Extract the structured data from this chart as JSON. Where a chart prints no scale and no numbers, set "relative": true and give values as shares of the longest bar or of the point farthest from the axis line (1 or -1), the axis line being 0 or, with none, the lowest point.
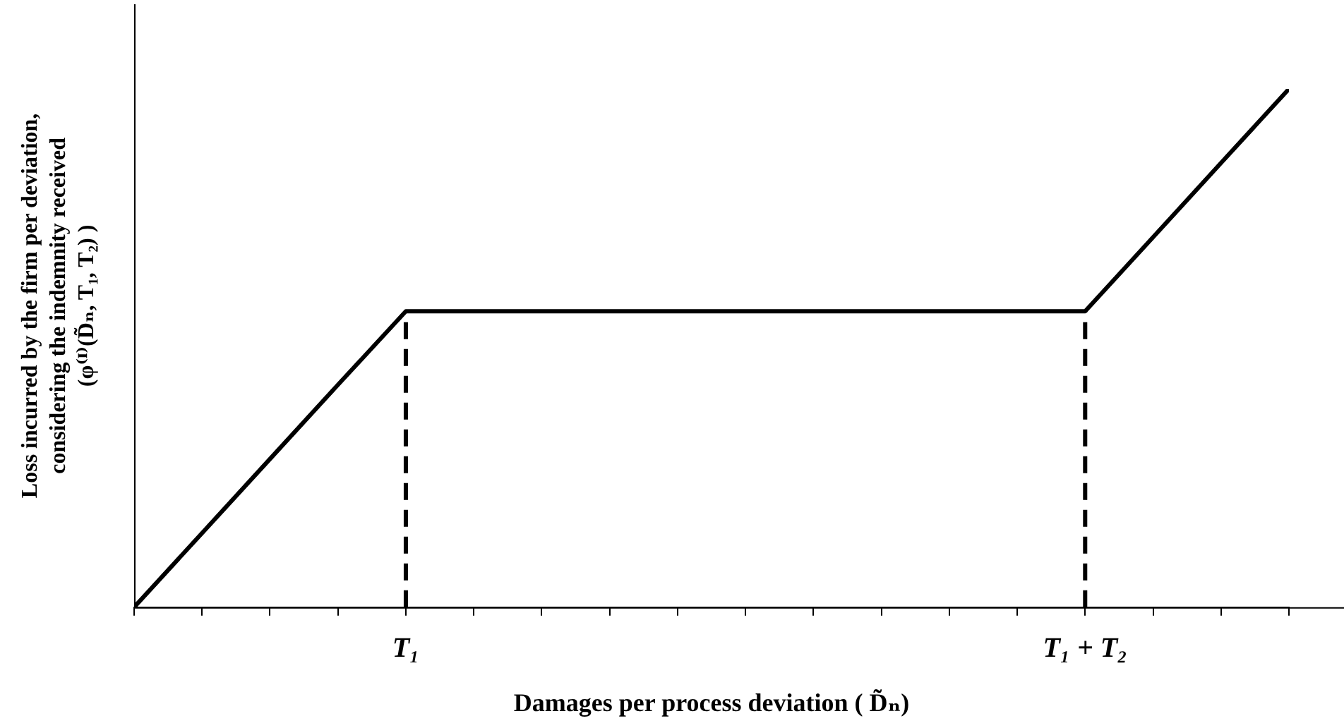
{
  "chart_data": {
    "type": "line",
    "relative": true,
    "xlabel": "Damages per process deviation ( D̃ₙ)",
    "ylabel": "Loss incurred by the firm per deviation,\nconsidering the indemnity received\n(φ⁽ᴵ⁾(D̃ₙ, T₁, T₂) )",
    "categories": [
      null,
      null,
      null,
      null,
      "T₁",
      null,
      null,
      null,
      null,
      null,
      null,
      null,
      null,
      null,
      "T₁ + T₂",
      null,
      null,
      null
    ],
    "series": [
      {
        "color": "#000000",
        "values": [
          0,
          0.143,
          0.286,
          0.429,
          0.571,
          0.571,
          0.571,
          0.571,
          0.571,
          0.571,
          0.571,
          0.571,
          0.571,
          0.571,
          0.571,
          0.714,
          0.857,
          1
        ],
        "line_style": "solid"
      },
      {
        "color": "#000000",
        "x": [
          "T₁",
          "T₁"
        ],
        "values": [
          0,
          0.571
        ],
        "line_style": "dashed"
      },
      {
        "color": "#000000",
        "x": [
          "T₁ + T₂",
          "T₁ + T₂"
        ],
        "values": [
          0,
          0.571
        ],
        "line_style": "dashed"
      }
    ],
    "marker": "none",
    "grid": false,
    "legend": false
  }
}
